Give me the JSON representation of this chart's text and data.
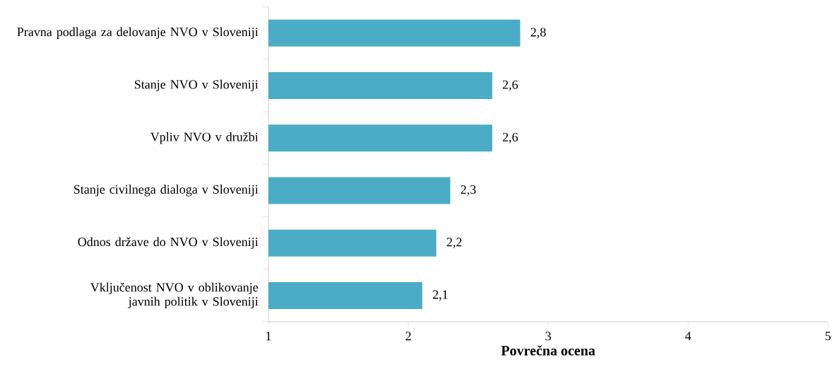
{
  "chart_data": {
    "type": "bar",
    "orientation": "horizontal",
    "xlabel": "Povrečna ocena",
    "categories": [
      "Pravna podlaga za delovanje NVO v Sloveniji",
      "Stanje NVO v Sloveniji",
      "Vpliv NVO v družbi",
      "Stanje civilnega dialoga v Sloveniji",
      "Odnos države do NVO v Sloveniji",
      "Vključenost NVO v oblikovanje javnih politik v Sloveniji"
    ],
    "values": [
      2.8,
      2.6,
      2.6,
      2.3,
      2.2,
      2.1
    ],
    "value_labels": [
      "2,8",
      "2,6",
      "2,6",
      "2,3",
      "2,2",
      "2,1"
    ],
    "color": "#4bacc6",
    "xlim": [
      1,
      5
    ],
    "xticks": [
      1,
      2,
      3,
      4,
      5
    ]
  }
}
